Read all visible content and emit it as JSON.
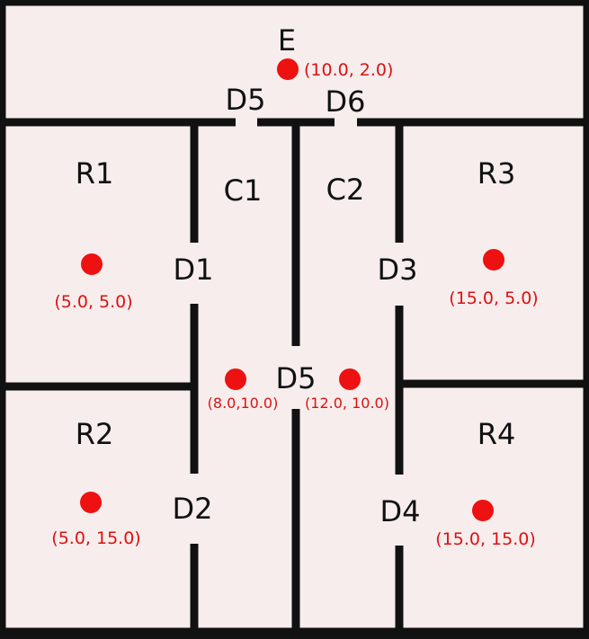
{
  "colors": {
    "wall": "#111111",
    "floor": "#f7eded",
    "point": "#ee1111",
    "coord_text": "#dd1111",
    "label_text": "#111111"
  },
  "labels": {
    "exit": "E",
    "door_d5_top": "D5",
    "door_d6": "D6",
    "room_r1": "R1",
    "room_r2": "R2",
    "room_r3": "R3",
    "room_r4": "R4",
    "corridor_c1": "C1",
    "corridor_c2": "C2",
    "door_d1": "D1",
    "door_d2": "D2",
    "door_d3": "D3",
    "door_d4": "D4",
    "door_d5_middle": "D5"
  },
  "points": [
    {
      "id": "exit-point",
      "coord": "(10.0, 2.0)"
    },
    {
      "id": "r1-point",
      "coord": "(5.0, 5.0)"
    },
    {
      "id": "r3-point",
      "coord": "(15.0, 5.0)"
    },
    {
      "id": "c1-point",
      "coord": "(8.0,10.0)"
    },
    {
      "id": "c2-point",
      "coord": "(12.0, 10.0)"
    },
    {
      "id": "r2-point",
      "coord": "(5.0, 15.0)"
    },
    {
      "id": "r4-point",
      "coord": "(15.0, 15.0)"
    }
  ]
}
